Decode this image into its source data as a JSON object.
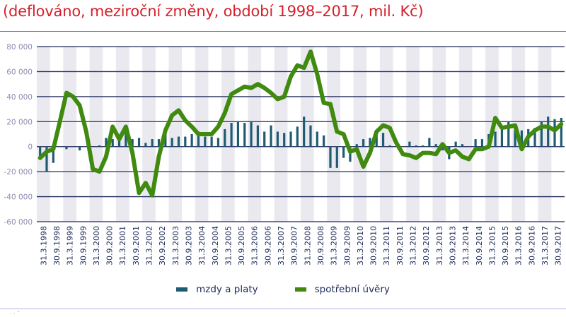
{
  "header": {
    "title_clipped": "",
    "subtitle": "(deflováno, meziroční změny, období 1998–2017, mil. Kč)"
  },
  "colors": {
    "title": "#d6202a",
    "bars": "#1f5b73",
    "line": "#3f8a0f",
    "gridline": "#1e2b5c",
    "band": "#e9e9ef",
    "axis_text": "#8e8db0"
  },
  "legend": {
    "items": [
      {
        "label": "mzdy a platy",
        "color": "#1f5b73"
      },
      {
        "label": "spotřební úvěry",
        "color": "#3f8a0f"
      }
    ]
  },
  "footnote": "· · ˇ",
  "chart_data": {
    "type": "bar+line",
    "title": "(deflováno, meziroční změny, období 1998–2017, mil. Kč)",
    "xlabel": "",
    "ylabel": "",
    "ylim": [
      -60000,
      80000
    ],
    "yticks": [
      80000,
      60000,
      40000,
      20000,
      0,
      -20000,
      -40000,
      -60000
    ],
    "ytick_labels": [
      "80 000",
      "60 000",
      "40 000",
      "20 000",
      "0",
      "-20 000",
      "-40 000",
      "-60 000"
    ],
    "grid": true,
    "legend_position": "bottom",
    "x_tick_labels": [
      "31.3.1998",
      "30.9.1998",
      "31.3.1999",
      "30.9.1999",
      "31.3.2000",
      "30.9.2000",
      "31.3.2001",
      "30.9.2001",
      "31.3.2002",
      "30.9.2002",
      "31.3.2003",
      "30.9.2003",
      "31.3.2004",
      "30.9.2004",
      "31.3.2005",
      "30.9.2005",
      "31.3.2006",
      "30.9.2006",
      "31.3.2007",
      "30.9.2007",
      "31.3.2008",
      "30.9.2008",
      "31.3.2009",
      "30.9.2009",
      "31.3.2010",
      "30.9.2010",
      "31.3.2011",
      "30.9.2011",
      "31.3.2012",
      "30.9.2012",
      "31.3.2013",
      "30.9.2013",
      "31.3.2014",
      "30.9.2014",
      "31.3.2015",
      "30.9.2015",
      "31.3.2016",
      "30.9.2016",
      "31.3.2017",
      "30.9.2017"
    ],
    "x_quarters": [
      "1998Q1",
      "1998Q2",
      "1998Q3",
      "1998Q4",
      "1999Q1",
      "1999Q2",
      "1999Q3",
      "1999Q4",
      "2000Q1",
      "2000Q2",
      "2000Q3",
      "2000Q4",
      "2001Q1",
      "2001Q2",
      "2001Q3",
      "2001Q4",
      "2002Q1",
      "2002Q2",
      "2002Q3",
      "2002Q4",
      "2003Q1",
      "2003Q2",
      "2003Q3",
      "2003Q4",
      "2004Q1",
      "2004Q2",
      "2004Q3",
      "2004Q4",
      "2005Q1",
      "2005Q2",
      "2005Q3",
      "2005Q4",
      "2006Q1",
      "2006Q2",
      "2006Q3",
      "2006Q4",
      "2007Q1",
      "2007Q2",
      "2007Q3",
      "2007Q4",
      "2008Q1",
      "2008Q2",
      "2008Q3",
      "2008Q4",
      "2009Q1",
      "2009Q2",
      "2009Q3",
      "2009Q4",
      "2010Q1",
      "2010Q2",
      "2010Q3",
      "2010Q4",
      "2011Q1",
      "2011Q2",
      "2011Q3",
      "2011Q4",
      "2012Q1",
      "2012Q2",
      "2012Q3",
      "2012Q4",
      "2013Q1",
      "2013Q2",
      "2013Q3",
      "2013Q4",
      "2014Q1",
      "2014Q2",
      "2014Q3",
      "2014Q4",
      "2015Q1",
      "2015Q2",
      "2015Q3",
      "2015Q4",
      "2016Q1",
      "2016Q2",
      "2016Q3",
      "2016Q4",
      "2017Q1",
      "2017Q2",
      "2017Q3",
      "2017Q4"
    ],
    "series": [
      {
        "name": "mzdy a platy",
        "type": "bar",
        "values": [
          -8000,
          -20000,
          -13000,
          0,
          -2000,
          0,
          -3000,
          0,
          0,
          1000,
          7000,
          6000,
          8000,
          12000,
          6000,
          7000,
          3000,
          6000,
          6000,
          10000,
          7000,
          8000,
          8000,
          10000,
          12000,
          8000,
          8000,
          7000,
          14000,
          19000,
          20000,
          19000,
          20000,
          17000,
          12000,
          17000,
          12000,
          11000,
          12000,
          16000,
          24000,
          17000,
          12000,
          9000,
          -17000,
          -17000,
          -9000,
          -12000,
          2000,
          6000,
          7000,
          11000,
          11000,
          1000,
          0,
          0,
          4000,
          1000,
          1000,
          7000,
          2000,
          -3000,
          -10000,
          4000,
          2000,
          0,
          6000,
          6000,
          10000,
          12000,
          15000,
          20000,
          13000,
          13000,
          14000,
          15000,
          20000,
          24000,
          22000,
          23000
        ]
      },
      {
        "name": "spotřební úvěry",
        "type": "line",
        "values": [
          -9000,
          -4000,
          -2000,
          20000,
          43000,
          40000,
          33000,
          12000,
          -18000,
          -20000,
          -8000,
          16000,
          6000,
          16000,
          -5000,
          -37000,
          -29000,
          -39000,
          -8000,
          13000,
          25000,
          29000,
          21000,
          16000,
          10000,
          10000,
          10000,
          16000,
          27000,
          42000,
          45000,
          48000,
          47000,
          50000,
          47000,
          43000,
          38000,
          40000,
          56000,
          65000,
          63000,
          76000,
          58000,
          35000,
          34000,
          12000,
          10000,
          -4000,
          -2000,
          -16000,
          -5000,
          12000,
          17000,
          15000,
          3000,
          -6000,
          -7000,
          -9000,
          -5000,
          -5000,
          -6000,
          2000,
          -5000,
          -3000,
          -8000,
          -10000,
          -2000,
          -2000,
          0,
          23000,
          15000,
          16000,
          17000,
          -2000,
          8000,
          13000,
          16000,
          16000,
          13000,
          18000
        ]
      }
    ]
  }
}
